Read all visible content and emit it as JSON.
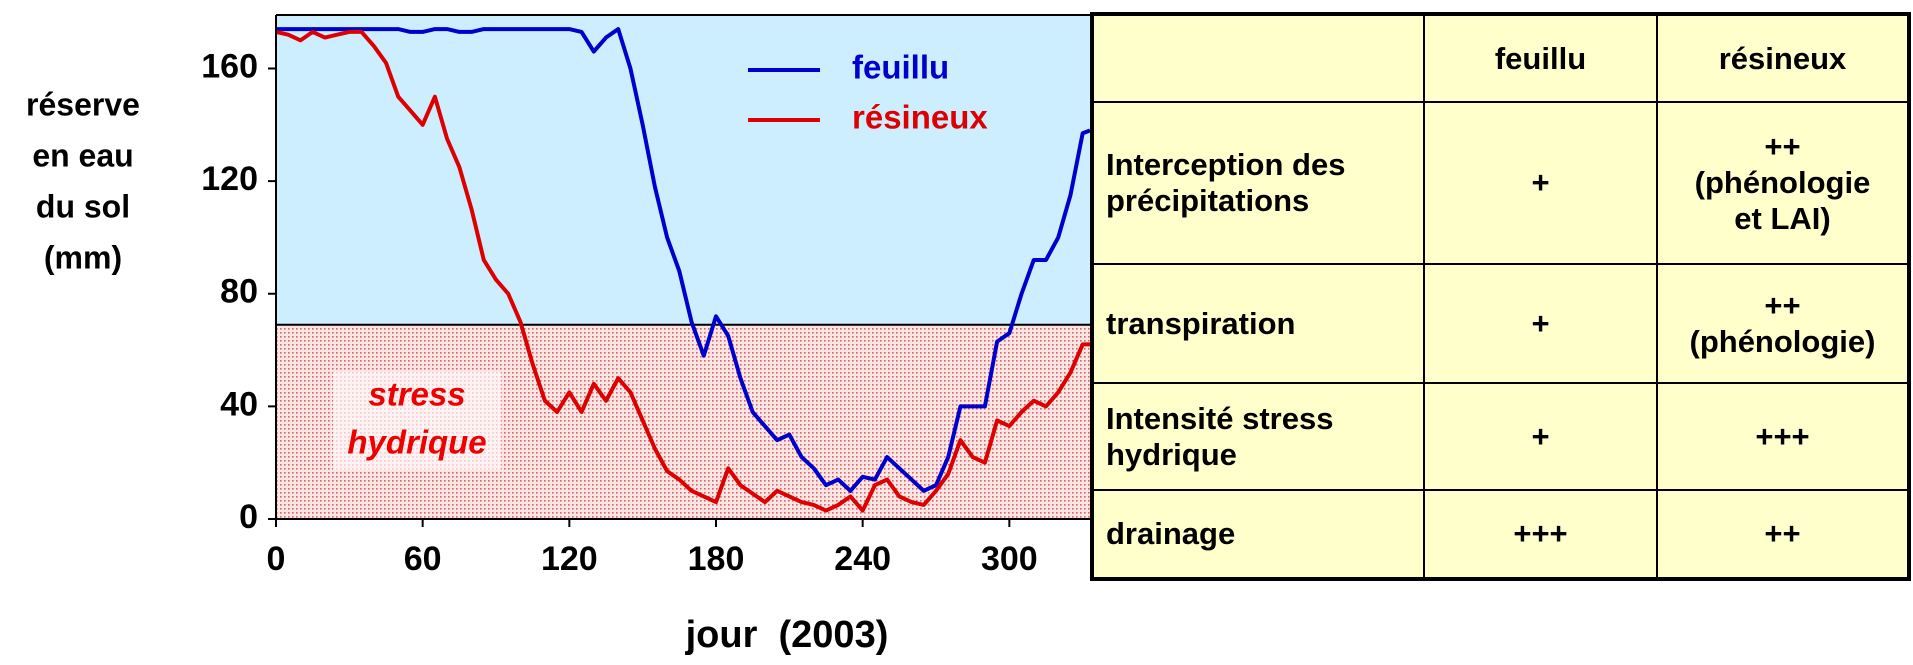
{
  "chart_data": {
    "type": "line",
    "ylabel": [
      "réserve",
      "en eau",
      "du sol",
      "(mm)"
    ],
    "xlabel": "jour  (2003)",
    "annotation": [
      "stress",
      "hydrique"
    ],
    "stress_threshold": 69,
    "xlim": [
      0,
      333
    ],
    "ylim": [
      0,
      179
    ],
    "xticks": [
      0,
      60,
      120,
      180,
      240,
      300
    ],
    "yticks": [
      0,
      40,
      80,
      120,
      160
    ],
    "legend": "top-right",
    "x": [
      0,
      5,
      10,
      15,
      20,
      25,
      30,
      35,
      40,
      45,
      50,
      55,
      60,
      65,
      70,
      75,
      80,
      85,
      90,
      95,
      100,
      105,
      110,
      115,
      120,
      125,
      130,
      135,
      140,
      145,
      150,
      155,
      160,
      165,
      170,
      175,
      180,
      185,
      190,
      195,
      200,
      205,
      210,
      215,
      220,
      225,
      230,
      235,
      240,
      245,
      250,
      255,
      260,
      265,
      270,
      275,
      280,
      285,
      290,
      295,
      300,
      305,
      310,
      315,
      320,
      325,
      330,
      333
    ],
    "series": [
      {
        "name": "feuillu",
        "color": "#0000cc",
        "values": [
          174,
          174,
          174,
          174,
          174,
          174,
          174,
          174,
          174,
          174,
          174,
          173,
          173,
          174,
          174,
          173,
          173,
          174,
          174,
          174,
          174,
          174,
          174,
          174,
          174,
          173,
          166,
          171,
          174,
          160,
          140,
          118,
          100,
          88,
          70,
          58,
          72,
          65,
          50,
          38,
          33,
          28,
          30,
          22,
          18,
          12,
          14,
          10,
          15,
          14,
          22,
          18,
          14,
          10,
          12,
          22,
          40,
          40,
          40,
          63,
          66,
          80,
          92,
          92,
          100,
          115,
          137,
          138
        ]
      },
      {
        "name": "résineux",
        "color": "#dd0000",
        "values": [
          173,
          172,
          170,
          173,
          171,
          172,
          173,
          173,
          168,
          162,
          150,
          145,
          140,
          150,
          135,
          125,
          110,
          92,
          85,
          80,
          70,
          55,
          42,
          38,
          45,
          38,
          48,
          42,
          50,
          45,
          35,
          25,
          17,
          14,
          10,
          8,
          6,
          18,
          12,
          9,
          6,
          10,
          8,
          6,
          5,
          3,
          5,
          8,
          3,
          12,
          14,
          8,
          6,
          5,
          10,
          16,
          28,
          22,
          20,
          35,
          33,
          38,
          42,
          40,
          45,
          52,
          62,
          62
        ]
      }
    ]
  },
  "table": {
    "header": [
      "feuillu",
      "résineux"
    ],
    "rows": [
      [
        "Interception des précipitations",
        [
          "+"
        ],
        [
          "++",
          "(phénologie",
          "et LAI)"
        ]
      ],
      [
        "transpiration",
        [
          "+"
        ],
        [
          "++",
          "(phénologie)"
        ]
      ],
      [
        "Intensité stress hydrique",
        [
          "+"
        ],
        [
          "+++"
        ]
      ],
      [
        "drainage",
        [
          "+++"
        ],
        [
          "++"
        ]
      ]
    ]
  }
}
